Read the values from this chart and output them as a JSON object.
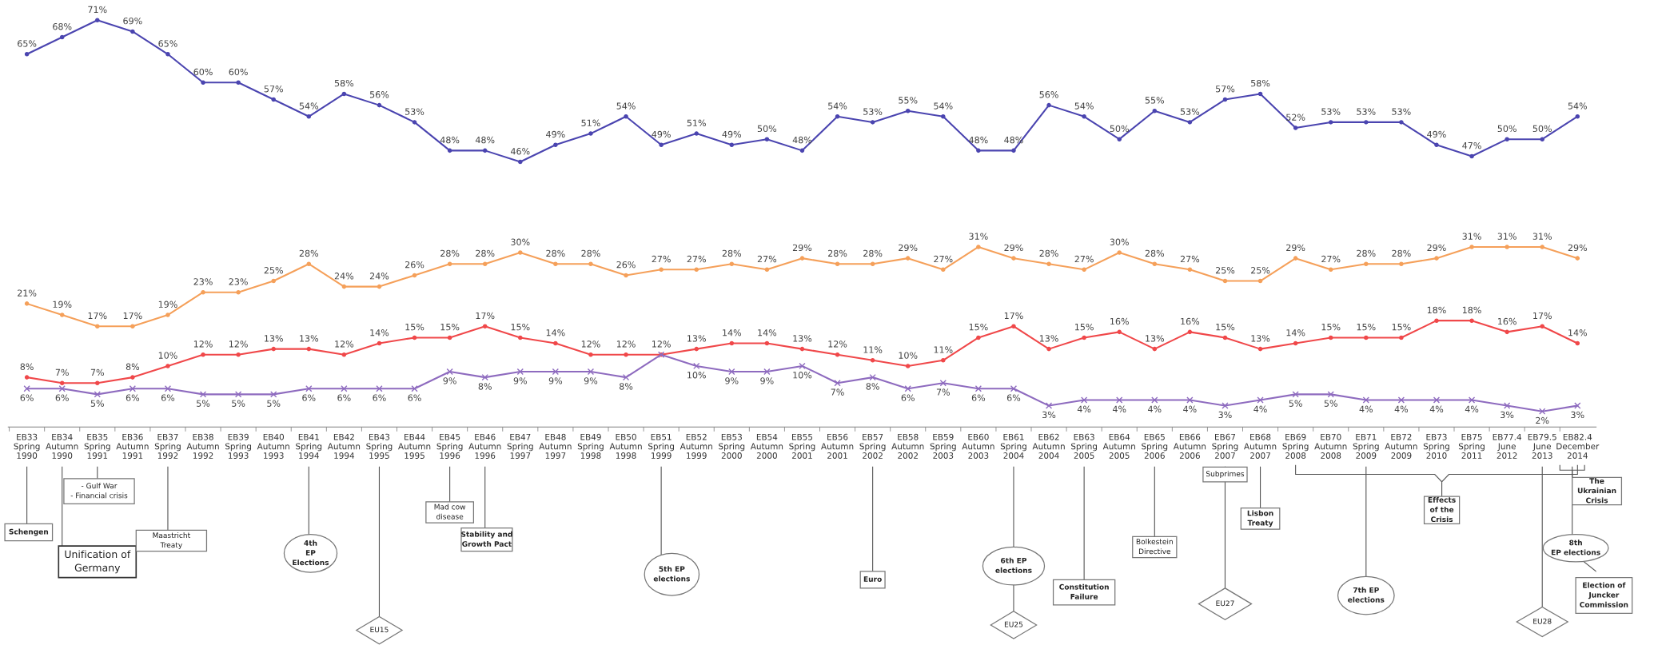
{
  "chart_data": {
    "type": "line",
    "categories": [
      "EB33\nSpring\n1990",
      "EB34\nAutumn\n1990",
      "EB35\nSpring\n1991",
      "EB36\nAutumn\n1991",
      "EB37\nSpring\n1992",
      "EB38\nAutumn\n1992",
      "EB39\nSpring\n1993",
      "EB40\nAutumn\n1993",
      "EB41\nSpring\n1994",
      "EB42\nAutumn\n1994",
      "EB43\nSpring\n1995",
      "EB44\nAutumn\n1995",
      "EB45\nSpring\n1996",
      "EB46\nAutumn\n1996",
      "EB47\nSpring\n1997",
      "EB48\nAutumn\n1997",
      "EB49\nSpring\n1998",
      "EB50\nAutumn\n1998",
      "EB51\nSpring\n1999",
      "EB52\nAutumn\n1999",
      "EB53\nSpring\n2000",
      "EB54\nAutumn\n2000",
      "EB55\nSpring\n2001",
      "EB56\nAutumn\n2001",
      "EB57\nSpring\n2002",
      "EB58\nAutumn\n2002",
      "EB59\nSpring\n2003",
      "EB60\nAutumn\n2003",
      "EB61\nSpring\n2004",
      "EB62\nAutumn\n2004",
      "EB63\nSpring\n2005",
      "EB64\nAutumn\n2005",
      "EB65\nSpring\n2006",
      "EB66\nAutumn\n2006",
      "EB67\nSpring\n2007",
      "EB68\nAutumn\n2007",
      "EB69\nSpring\n2008",
      "EB70\nAutumn\n2008",
      "EB71\nSpring\n2009",
      "EB72\nAutumn\n2009",
      "EB73\nSpring\n2010",
      "EB75\nSpring\n2011",
      "EB77.4\nJune\n2012",
      "EB79.5\nJune\n2013",
      "EB82.4\nDecember\n2014"
    ],
    "series": [
      {
        "color": "#4b45b0",
        "marker": "circle",
        "values": [
          65,
          68,
          71,
          69,
          65,
          60,
          60,
          57,
          54,
          58,
          56,
          53,
          48,
          48,
          46,
          49,
          51,
          54,
          49,
          51,
          49,
          50,
          48,
          54,
          53,
          55,
          54,
          48,
          48,
          56,
          54,
          50,
          55,
          53,
          57,
          58,
          52,
          53,
          53,
          53,
          49,
          47,
          50,
          50,
          54
        ],
        "value_labels": [
          "65%",
          "68%",
          "71%",
          "69%",
          "65%",
          "60%",
          "60%",
          "57%",
          "54%",
          "58%",
          "56%",
          "53%",
          "48%",
          "48%",
          "46%",
          "49%",
          "51%",
          "54%",
          "49%",
          "51%",
          "49%",
          "50%",
          "48%",
          "54%",
          "53%",
          "55%",
          "54%",
          "48%",
          "48%",
          "56%",
          "54%",
          "50%",
          "55%",
          "53%",
          "57%",
          "58%",
          "52%",
          "53%",
          "53%",
          "53%",
          "49%",
          "47%",
          "50%",
          "50%",
          "54%"
        ]
      },
      {
        "color": "#f5a05a",
        "marker": "circle",
        "values": [
          21,
          19,
          17,
          17,
          19,
          23,
          23,
          25,
          28,
          24,
          24,
          26,
          28,
          28,
          30,
          28,
          28,
          26,
          27,
          27,
          28,
          27,
          29,
          28,
          28,
          29,
          27,
          31,
          29,
          28,
          27,
          30,
          28,
          27,
          25,
          25,
          29,
          27,
          28,
          28,
          29,
          31,
          31,
          31,
          29
        ],
        "value_labels": [
          "21%",
          "19%",
          "17%",
          "17%",
          "19%",
          "23%",
          "23%",
          "25%",
          "28%",
          "24%",
          "24%",
          "26%",
          "28%",
          "28%",
          "30%",
          "28%",
          "28%",
          "26%",
          "27%",
          "27%",
          "28%",
          "27%",
          "29%",
          "28%",
          "28%",
          "29%",
          "27%",
          "31%",
          "29%",
          "28%",
          "27%",
          "30%",
          "28%",
          "27%",
          "25%",
          "25%",
          "29%",
          "27%",
          "28%",
          "28%",
          "29%",
          "31%",
          "31%",
          "31%",
          "29%"
        ]
      },
      {
        "color": "#f0484a",
        "marker": "circle",
        "values": [
          8,
          7,
          7,
          8,
          10,
          12,
          12,
          13,
          13,
          12,
          14,
          15,
          15,
          17,
          15,
          14,
          12,
          12,
          12,
          13,
          14,
          14,
          13,
          12,
          11,
          10,
          11,
          15,
          17,
          13,
          15,
          16,
          13,
          16,
          15,
          13,
          14,
          15,
          15,
          15,
          18,
          18,
          16,
          17,
          14
        ],
        "value_labels": [
          "8%",
          "7%",
          "7%",
          "8%",
          "10%",
          "12%",
          "12%",
          "13%",
          "13%",
          "12%",
          "14%",
          "15%",
          "15%",
          "17%",
          "15%",
          "14%",
          "12%",
          "12%",
          "12%",
          "13%",
          "14%",
          "14%",
          "13%",
          "12%",
          "11%",
          "10%",
          "11%",
          "15%",
          "17%",
          "13%",
          "15%",
          "16%",
          "13%",
          "16%",
          "15%",
          "13%",
          "14%",
          "15%",
          "15%",
          "15%",
          "18%",
          "18%",
          "16%",
          "17%",
          "14%"
        ]
      },
      {
        "color": "#8e6bbf",
        "marker": "cross",
        "values": [
          6,
          6,
          5,
          6,
          6,
          5,
          5,
          5,
          6,
          6,
          6,
          6,
          9,
          8,
          9,
          9,
          9,
          8,
          12,
          10,
          9,
          9,
          10,
          7,
          8,
          6,
          7,
          6,
          6,
          3,
          4,
          4,
          4,
          4,
          3,
          4,
          5,
          5,
          4,
          4,
          4,
          4,
          3,
          2,
          3
        ],
        "value_labels": [
          "6%",
          "6%",
          "5%",
          "6%",
          "6%",
          "5%",
          "5%",
          "5%",
          "6%",
          "6%",
          "6%",
          "6%",
          "9%",
          "8%",
          "9%",
          "9%",
          "9%",
          "8%",
          null,
          "10%",
          "9%",
          "9%",
          "10%",
          "7%",
          "8%",
          "6%",
          "7%",
          "6%",
          "6%",
          "3%",
          "4%",
          "4%",
          "4%",
          "4%",
          "3%",
          "4%",
          "5%",
          "5%",
          "4%",
          "4%",
          "4%",
          "4%",
          "3%",
          "2%",
          "3%"
        ]
      }
    ],
    "grid": false,
    "legend": false,
    "tick_labels": "x",
    "annotations": [
      "Schengen",
      "Unification of\nGermany",
      "- Gulf War\n- Financial crisis",
      "Maastricht\nTreaty",
      "4th\nEP\nElections",
      "EU15",
      "Mad cow\ndisease",
      "Stability and\nGrowth Pact",
      "5th EP\nelections",
      "Euro",
      "6th EP\nelections",
      "EU25",
      "Constitution\nFailure",
      "Bolkestein\nDirective",
      "Subprimes",
      "EU27",
      "Lisbon\nTreaty",
      "Effects\nof the\nCrisis",
      "The\nUkrainian\nCrisis",
      "7th EP\nelections",
      "8th\nEP elections",
      "EU28",
      "Election of\nJuncker\nCommission"
    ]
  }
}
